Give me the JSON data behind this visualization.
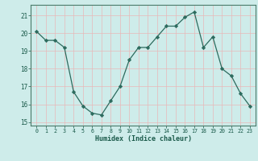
{
  "x": [
    0,
    1,
    2,
    3,
    4,
    5,
    6,
    7,
    8,
    9,
    10,
    11,
    12,
    13,
    14,
    15,
    16,
    17,
    18,
    19,
    20,
    21,
    22,
    23
  ],
  "y": [
    20.1,
    19.6,
    19.6,
    19.2,
    16.7,
    15.9,
    15.5,
    15.4,
    16.2,
    17.0,
    18.5,
    19.2,
    19.2,
    19.8,
    20.4,
    20.4,
    20.9,
    21.2,
    19.2,
    19.8,
    18.0,
    17.6,
    16.6,
    15.9
  ],
  "xlabel": "Humidex (Indice chaleur)",
  "ylim": [
    14.8,
    21.6
  ],
  "yticks": [
    15,
    16,
    17,
    18,
    19,
    20,
    21
  ],
  "xticks": [
    0,
    1,
    2,
    3,
    4,
    5,
    6,
    7,
    8,
    9,
    10,
    11,
    12,
    13,
    14,
    15,
    16,
    17,
    18,
    19,
    20,
    21,
    22,
    23
  ],
  "line_color": "#2d6b5e",
  "marker": "D",
  "marker_size": 2.2,
  "bg_color": "#ceecea",
  "grid_color_v": "#e8b8b8",
  "grid_color_h": "#e8b8b8",
  "label_color": "#1a5a4a",
  "tick_color": "#1a5a4a",
  "spine_color": "#4a7a6a"
}
